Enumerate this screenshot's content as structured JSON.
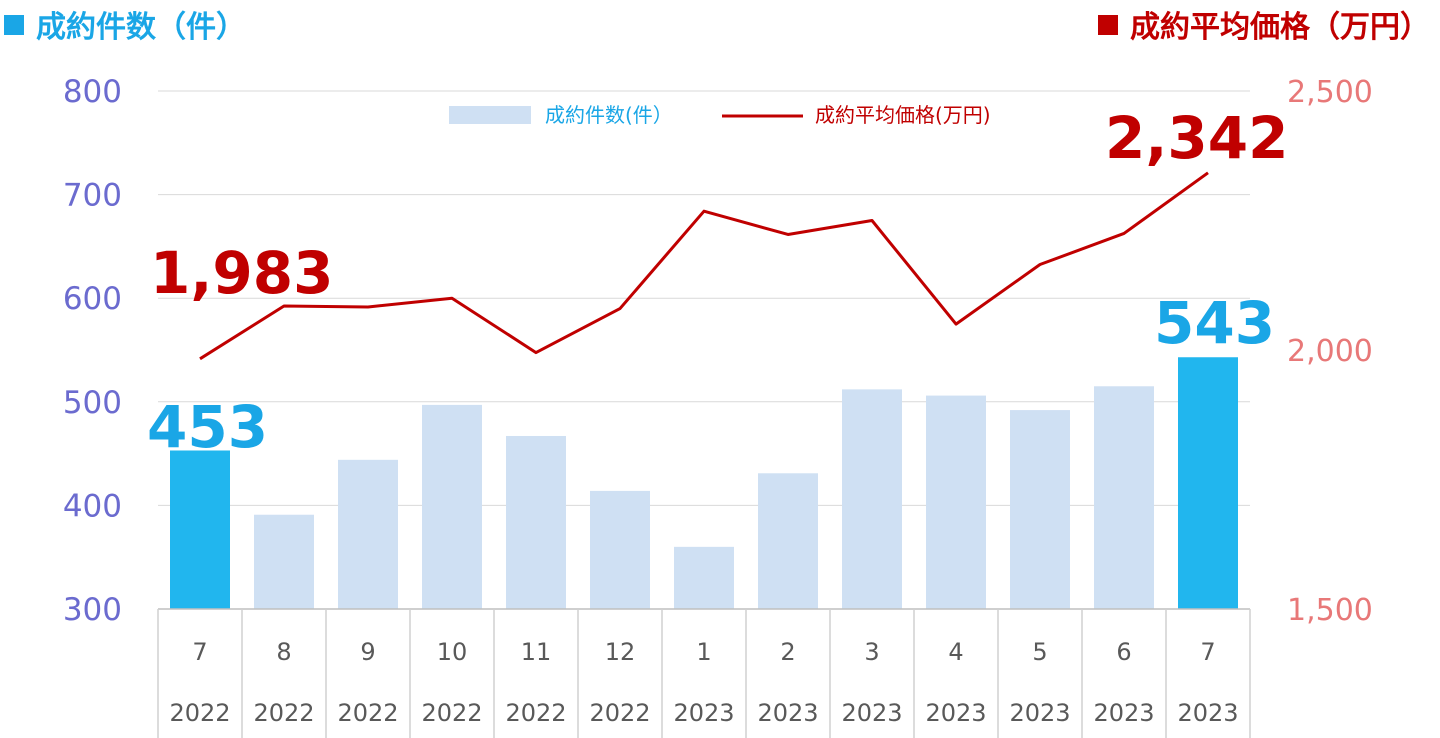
{
  "header": {
    "left_title": "成約件数（件）",
    "right_title": "成約平均価格（万円）",
    "left_color": "#1aa6e6",
    "right_color": "#c00000"
  },
  "chart_data": {
    "type": "bar",
    "categories": [
      "7",
      "8",
      "9",
      "10",
      "11",
      "12",
      "1",
      "2",
      "3",
      "4",
      "5",
      "6",
      "7"
    ],
    "years": [
      "2022",
      "2022",
      "2022",
      "2022",
      "2022",
      "2022",
      "2023",
      "2023",
      "2023",
      "2023",
      "2023",
      "2023",
      "2023"
    ],
    "series": [
      {
        "name": "成約件数(件）",
        "type": "bar",
        "axis": "left",
        "values": [
          453,
          391,
          444,
          497,
          467,
          414,
          360,
          431,
          512,
          506,
          492,
          515,
          543
        ],
        "color": "#cfe0f3",
        "highlight_color": "#21b6ee"
      },
      {
        "name": "成約平均価格(万円)",
        "type": "line",
        "axis": "right",
        "values": [
          1983,
          2085,
          2083,
          2100,
          1995,
          2080,
          2268,
          2223,
          2250,
          2050,
          2165,
          2225,
          2342
        ],
        "color": "#c00000"
      }
    ],
    "left_axis": {
      "ylim": [
        300,
        800
      ],
      "ticks": [
        "300",
        "400",
        "500",
        "600",
        "700",
        "800"
      ]
    },
    "right_axis": {
      "ylim": [
        1500,
        2500
      ],
      "ticks": [
        "1,500",
        "2,000",
        "2,500"
      ]
    },
    "callouts": {
      "line_first": "1,983",
      "line_last": "2,342",
      "bar_first": "453",
      "bar_last": "543"
    },
    "grid": true,
    "legend_position": "top-center"
  }
}
